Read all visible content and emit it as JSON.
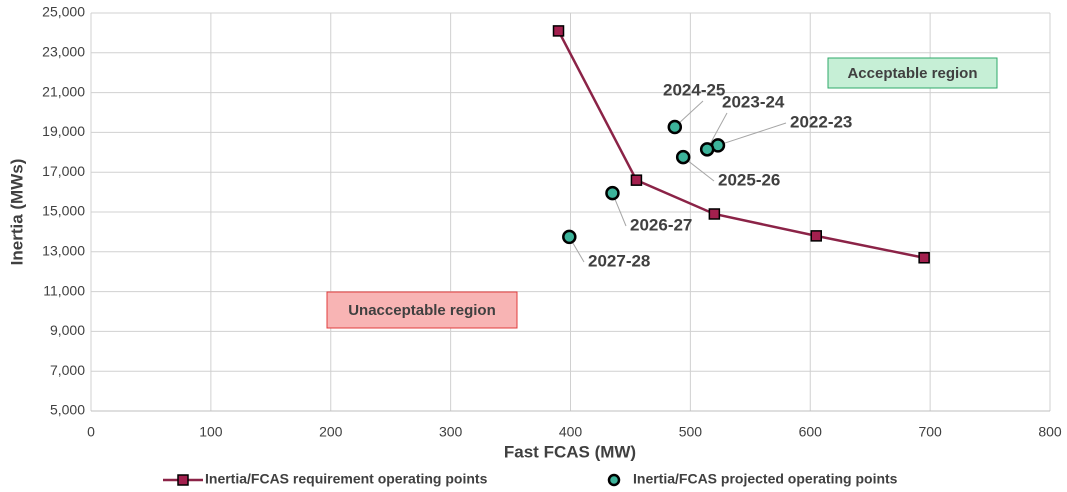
{
  "chart_data": {
    "type": "scatter",
    "x_label": "Fast FCAS (MW)",
    "y_label": "Inertia (MWs)",
    "xlim": [
      0,
      800
    ],
    "xticks": [
      0,
      100,
      200,
      300,
      400,
      500,
      600,
      700,
      800
    ],
    "ylim": [
      5000,
      25000
    ],
    "yticks": [
      {
        "value": 5000,
        "label": "5,000"
      },
      {
        "value": 7000,
        "label": "7,000"
      },
      {
        "value": 9000,
        "label": "9,000"
      },
      {
        "value": 11000,
        "label": "11,000"
      },
      {
        "value": 13000,
        "label": "13,000"
      },
      {
        "value": 15000,
        "label": "15,000"
      },
      {
        "value": 17000,
        "label": "17,000"
      },
      {
        "value": 19000,
        "label": "19,000"
      },
      {
        "value": 21000,
        "label": "21,000"
      },
      {
        "value": 23000,
        "label": "23,000"
      },
      {
        "value": 25000,
        "label": "25,000"
      }
    ],
    "grid": true,
    "legend": "bottom",
    "series": [
      {
        "name": "Inertia/FCAS requirement operating points",
        "type": "line",
        "color": "#8b2347",
        "marker_color": "#a3204e",
        "x": [
          390,
          455,
          520,
          605,
          695
        ],
        "values": [
          24100,
          16600,
          14900,
          13800,
          12700
        ]
      },
      {
        "name": "Inertia/FCAS projected operating points",
        "type": "scatter",
        "color": "#3cb39a",
        "x": [
          523,
          514,
          487,
          494,
          435,
          399
        ],
        "values": [
          18350,
          18150,
          19270,
          17760,
          15950,
          13750
        ],
        "labels": [
          "2022-23",
          "2023-24",
          "2024-25",
          "2025-26",
          "2026-27",
          "2027-28"
        ]
      }
    ],
    "annotations": [
      "Acceptable region",
      "Unacceptable region"
    ]
  }
}
